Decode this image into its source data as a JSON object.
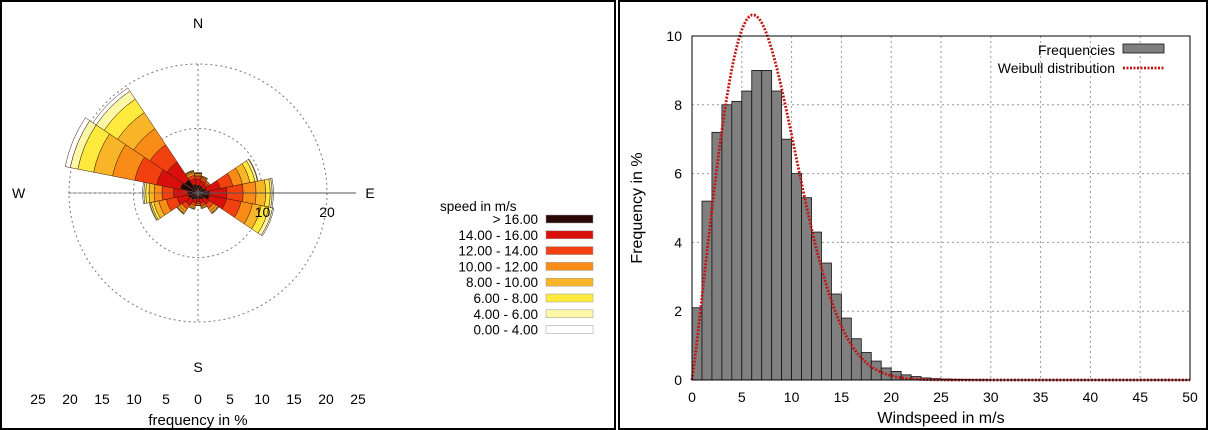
{
  "chart_data": [
    {
      "type": "windrose",
      "title": "",
      "xlabel": "frequency in %",
      "directions": [
        "N",
        "W",
        "E",
        "S"
      ],
      "ring_labels": [
        "10",
        "20"
      ],
      "ticks": [
        "25",
        "20",
        "15",
        "10",
        "5",
        "0",
        "5",
        "10",
        "15",
        "20",
        "25"
      ],
      "xlim": [
        -25,
        25
      ],
      "legend_title": "speed in m/s",
      "legend_placement": "right",
      "speed_classes": [
        {
          "label": "> 16.00",
          "color": "#2a0605"
        },
        {
          "label": "14.00 - 16.00",
          "color": "#d80f0b"
        },
        {
          "label": "12.00 - 14.00",
          "color": "#f2400f"
        },
        {
          "label": "10.00 - 12.00",
          "color": "#f98c16"
        },
        {
          "label": "8.00 -  10.00",
          "color": "#f9b528"
        },
        {
          "label": "6.00 -   8.00",
          "color": "#fdea3c"
        },
        {
          "label": "4.00 -   6.00",
          "color": "#fdf8a8"
        },
        {
          "label": "0.00 -   4.00",
          "color": "#ffffff"
        }
      ],
      "sectors": [
        {
          "direction": "N",
          "cumulative": [
            1.2,
            2.2,
            2.6,
            2.8,
            3.0,
            3.1,
            3.2,
            3.2
          ]
        },
        {
          "direction": "NNE",
          "cumulative": [
            1.1,
            1.9,
            2.3,
            2.5,
            2.6,
            2.7,
            2.7,
            2.7
          ]
        },
        {
          "direction": "NE",
          "cumulative": [
            1.0,
            1.7,
            2.0,
            2.2,
            2.3,
            2.3,
            2.3,
            2.3
          ]
        },
        {
          "direction": "ENE",
          "cumulative": [
            1.3,
            3.5,
            5.5,
            7.0,
            8.2,
            9.0,
            9.4,
            9.5
          ]
        },
        {
          "direction": "E",
          "cumulative": [
            1.8,
            4.5,
            7.0,
            9.0,
            10.5,
            11.2,
            11.5,
            11.7
          ]
        },
        {
          "direction": "ESE",
          "cumulative": [
            1.8,
            4.5,
            6.8,
            8.6,
            10.0,
            11.2,
            11.8,
            12.0
          ]
        },
        {
          "direction": "SE",
          "cumulative": [
            1.1,
            2.1,
            2.9,
            3.4,
            3.7,
            3.8,
            3.9,
            3.9
          ]
        },
        {
          "direction": "SSE",
          "cumulative": [
            1.0,
            1.6,
            2.0,
            2.2,
            2.4,
            2.5,
            2.5,
            2.5
          ]
        },
        {
          "direction": "S",
          "cumulative": [
            0.9,
            1.4,
            1.7,
            1.9,
            2.0,
            2.0,
            2.0,
            2.0
          ]
        },
        {
          "direction": "SSW",
          "cumulative": [
            1.0,
            1.6,
            2.0,
            2.3,
            2.5,
            2.6,
            2.6,
            2.6
          ]
        },
        {
          "direction": "SW",
          "cumulative": [
            1.3,
            2.3,
            3.0,
            3.5,
            3.8,
            3.9,
            4.0,
            4.0
          ]
        },
        {
          "direction": "WSW",
          "cumulative": [
            1.5,
            3.3,
            5.0,
            6.2,
            7.0,
            7.4,
            7.6,
            7.7
          ]
        },
        {
          "direction": "W",
          "cumulative": [
            1.6,
            3.8,
            5.6,
            6.8,
            7.6,
            8.1,
            8.4,
            8.6
          ]
        },
        {
          "direction": "WNW",
          "cumulative": [
            2.8,
            6.5,
            10.0,
            13.5,
            16.5,
            19.0,
            20.2,
            21.0
          ]
        },
        {
          "direction": "NW",
          "cumulative": [
            2.5,
            5.8,
            9.0,
            12.0,
            15.0,
            17.5,
            19.0,
            19.6
          ]
        },
        {
          "direction": "NNW",
          "cumulative": [
            1.4,
            2.3,
            2.8,
            3.2,
            3.4,
            3.5,
            3.6,
            3.6
          ]
        }
      ]
    },
    {
      "type": "bar",
      "title": "",
      "xlabel": "Windspeed in m/s",
      "ylabel": "Frequency in %",
      "xlim": [
        0,
        50
      ],
      "ylim": [
        0,
        10
      ],
      "xticks": [
        "0",
        "5",
        "10",
        "15",
        "20",
        "25",
        "30",
        "35",
        "40",
        "45",
        "50"
      ],
      "yticks": [
        "0",
        "2",
        "4",
        "6",
        "8",
        "10"
      ],
      "grid": true,
      "legend_placement": "top-right",
      "series": [
        {
          "name": "Frequencies",
          "color": "#808080",
          "x": [
            0.5,
            1.5,
            2.5,
            3.5,
            4.5,
            5.5,
            6.5,
            7.5,
            8.5,
            9.5,
            10.5,
            11.5,
            12.5,
            13.5,
            14.5,
            15.5,
            16.5,
            17.5,
            18.5,
            19.5,
            20.5,
            21.5,
            22.5,
            23.5,
            24.5,
            25.5,
            26.5,
            27.5,
            28.5,
            29.5
          ],
          "values": [
            2.1,
            5.2,
            7.2,
            8.0,
            8.1,
            8.4,
            9.0,
            9.0,
            8.4,
            7.0,
            6.0,
            5.3,
            4.3,
            3.4,
            2.5,
            1.8,
            1.2,
            0.8,
            0.55,
            0.35,
            0.25,
            0.15,
            0.1,
            0.06,
            0.04,
            0.03,
            0.02,
            0.015,
            0.01,
            0.01
          ]
        },
        {
          "name": "Weibull distribution",
          "color": "#c41515",
          "type": "line",
          "weibull_k": 2.1,
          "weibull_c": 8.35
        }
      ]
    }
  ]
}
